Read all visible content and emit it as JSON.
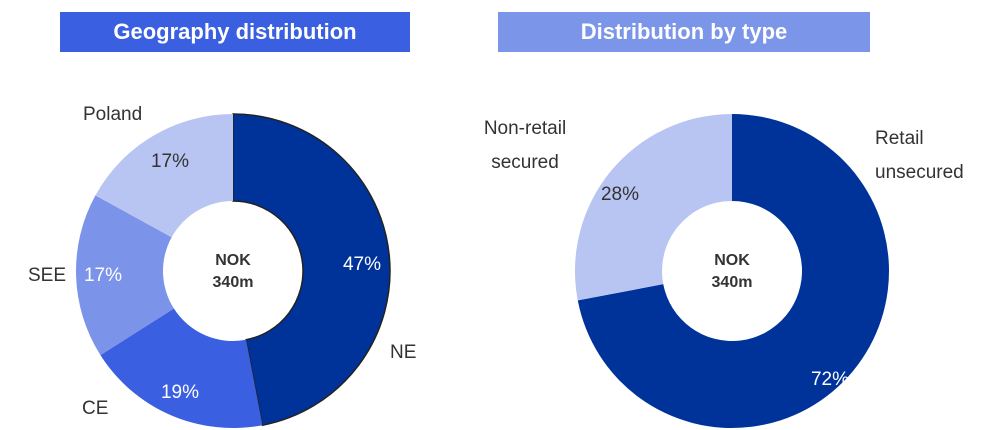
{
  "chart_data": [
    {
      "type": "donut",
      "title": "Geography distribution",
      "title_color": "#3a5fe0",
      "center_label": [
        "NOK",
        "340m"
      ],
      "categories": [
        "NE",
        "CE",
        "SEE",
        "Poland"
      ],
      "values": [
        47,
        19,
        17,
        17
      ],
      "value_labels": [
        "47%",
        "19%",
        "17%",
        "17%"
      ],
      "colors": [
        "#00339a",
        "#3a5fe0",
        "#7b93e8",
        "#b8c4f2"
      ]
    },
    {
      "type": "donut",
      "title": "Distribution by type",
      "title_color": "#7b96e8",
      "center_label": [
        "NOK",
        "340m"
      ],
      "categories": [
        "Retail unsecured",
        "Non-retail secured"
      ],
      "values": [
        72,
        28
      ],
      "value_labels": [
        "72%",
        "28%"
      ],
      "colors": [
        "#00339a",
        "#b8c4f2"
      ]
    }
  ]
}
